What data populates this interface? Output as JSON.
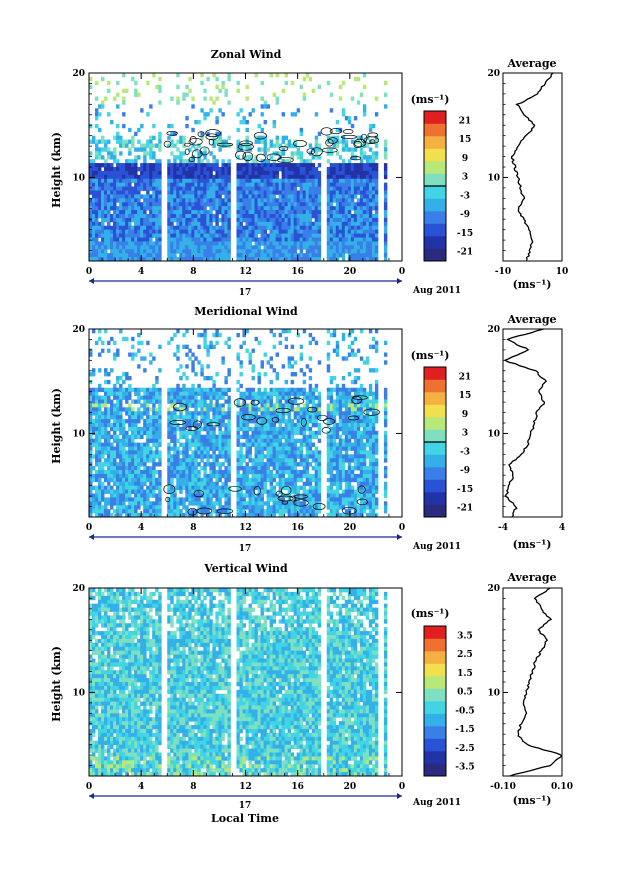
{
  "figure": {
    "xlabel": "Local Time",
    "date_label": "Aug 2011",
    "day_label": "17",
    "avg_title": "Average",
    "unit_label": "(ms⁻¹)",
    "ylabel": "Height (km)"
  },
  "colors": {
    "scale": [
      "#2a2a7e",
      "#2233a8",
      "#2a52d6",
      "#3a7fe8",
      "#34b0e8",
      "#40d4e4",
      "#7ee0c0",
      "#b8e878",
      "#f0e050",
      "#f4b040",
      "#f07030",
      "#e02020"
    ],
    "contour": "#000000",
    "range_marker": "#1a2a80"
  },
  "chart_data": [
    {
      "type": "heatmap",
      "title": "Zonal Wind",
      "ylabel": "Height (km)",
      "xlabel": "",
      "xlim": [
        0,
        24
      ],
      "ylim": [
        2,
        20
      ],
      "xticks": [
        "0",
        "4",
        "8",
        "12",
        "16",
        "20",
        "0"
      ],
      "yticks": [
        "10",
        "20"
      ],
      "colorbar": {
        "unit": "(ms⁻¹)",
        "ticks": [
          "21",
          "15",
          "9",
          "3",
          "-3",
          "-9",
          "-15",
          "-21"
        ],
        "range": [
          -24,
          24
        ],
        "line_at": 0
      },
      "data_gaps_hours": [
        [
          5.6,
          5.9
        ],
        [
          10.8,
          11.4
        ],
        [
          17.8,
          18.2
        ],
        [
          22.2,
          22.5
        ]
      ],
      "average_profile": {
        "xlim": [
          -10,
          10
        ],
        "xticks": [
          "-10",
          "10"
        ],
        "yticks": [
          "10",
          "20"
        ],
        "height_km": [
          2,
          3,
          4,
          5,
          6,
          7,
          8,
          9,
          10,
          11,
          12,
          13,
          14,
          15,
          16,
          17,
          18,
          19,
          20
        ],
        "value_ms": [
          -2,
          -1,
          0,
          -1,
          -3,
          -5,
          -3,
          -4,
          -5,
          -6,
          -7,
          -5,
          -2,
          1,
          -3,
          -5,
          2,
          4,
          7
        ]
      }
    },
    {
      "type": "heatmap",
      "title": "Meridional Wind",
      "ylabel": "Height (km)",
      "xlabel": "",
      "xlim": [
        0,
        24
      ],
      "ylim": [
        2,
        20
      ],
      "xticks": [
        "0",
        "4",
        "8",
        "12",
        "16",
        "20",
        "0"
      ],
      "yticks": [
        "10",
        "20"
      ],
      "colorbar": {
        "unit": "(ms⁻¹)",
        "ticks": [
          "21",
          "15",
          "9",
          "3",
          "-3",
          "-9",
          "-15",
          "-21"
        ],
        "range": [
          -24,
          24
        ],
        "line_at": 0
      },
      "data_gaps_hours": [
        [
          5.6,
          5.9
        ],
        [
          10.8,
          11.4
        ],
        [
          17.8,
          18.2
        ],
        [
          22.2,
          22.5
        ]
      ],
      "average_profile": {
        "xlim": [
          -4,
          4
        ],
        "xticks": [
          "-4",
          "4"
        ],
        "yticks": [
          "10",
          "20"
        ],
        "height_km": [
          2,
          3,
          4,
          5,
          6,
          7,
          8,
          9,
          10,
          11,
          12,
          13,
          14,
          15,
          16,
          17,
          18,
          19,
          20
        ],
        "value_ms": [
          -2.8,
          -2.2,
          -3.6,
          -3.2,
          -2.6,
          -3.2,
          -1.5,
          -0.6,
          -0.2,
          0.2,
          0.6,
          1.6,
          0.8,
          1.8,
          0.4,
          -3.8,
          -0.5,
          -3.5,
          1.5
        ]
      }
    },
    {
      "type": "heatmap",
      "title": "Vertical Wind",
      "ylabel": "Height (km)",
      "xlabel": "Local Time",
      "xlim": [
        0,
        24
      ],
      "ylim": [
        2,
        20
      ],
      "xticks": [
        "0",
        "4",
        "8",
        "12",
        "16",
        "20",
        "0"
      ],
      "yticks": [
        "10",
        "20"
      ],
      "colorbar": {
        "unit": "(ms⁻¹)",
        "ticks": [
          "3.5",
          "2.5",
          "1.5",
          "0.5",
          "-0.5",
          "-1.5",
          "-2.5",
          "-3.5"
        ],
        "range": [
          -4,
          4
        ],
        "line_at": null
      },
      "data_gaps_hours": [
        [
          5.6,
          5.9
        ],
        [
          10.8,
          11.4
        ],
        [
          17.8,
          18.2
        ],
        [
          22.2,
          22.5
        ]
      ],
      "average_profile": {
        "xlim": [
          -0.1,
          0.1
        ],
        "xticks": [
          "-0.10",
          "0.10"
        ],
        "yticks": [
          "10",
          "20"
        ],
        "height_km": [
          2,
          3,
          4,
          5,
          6,
          7,
          8,
          9,
          10,
          11,
          12,
          13,
          14,
          15,
          16,
          17,
          18,
          19,
          20
        ],
        "value_ms": [
          -0.08,
          0.06,
          0.1,
          -0.02,
          -0.05,
          -0.04,
          -0.02,
          -0.03,
          -0.02,
          -0.01,
          0.0,
          0.01,
          0.03,
          0.05,
          0.02,
          0.06,
          0.03,
          0.01,
          0.06
        ]
      }
    }
  ]
}
